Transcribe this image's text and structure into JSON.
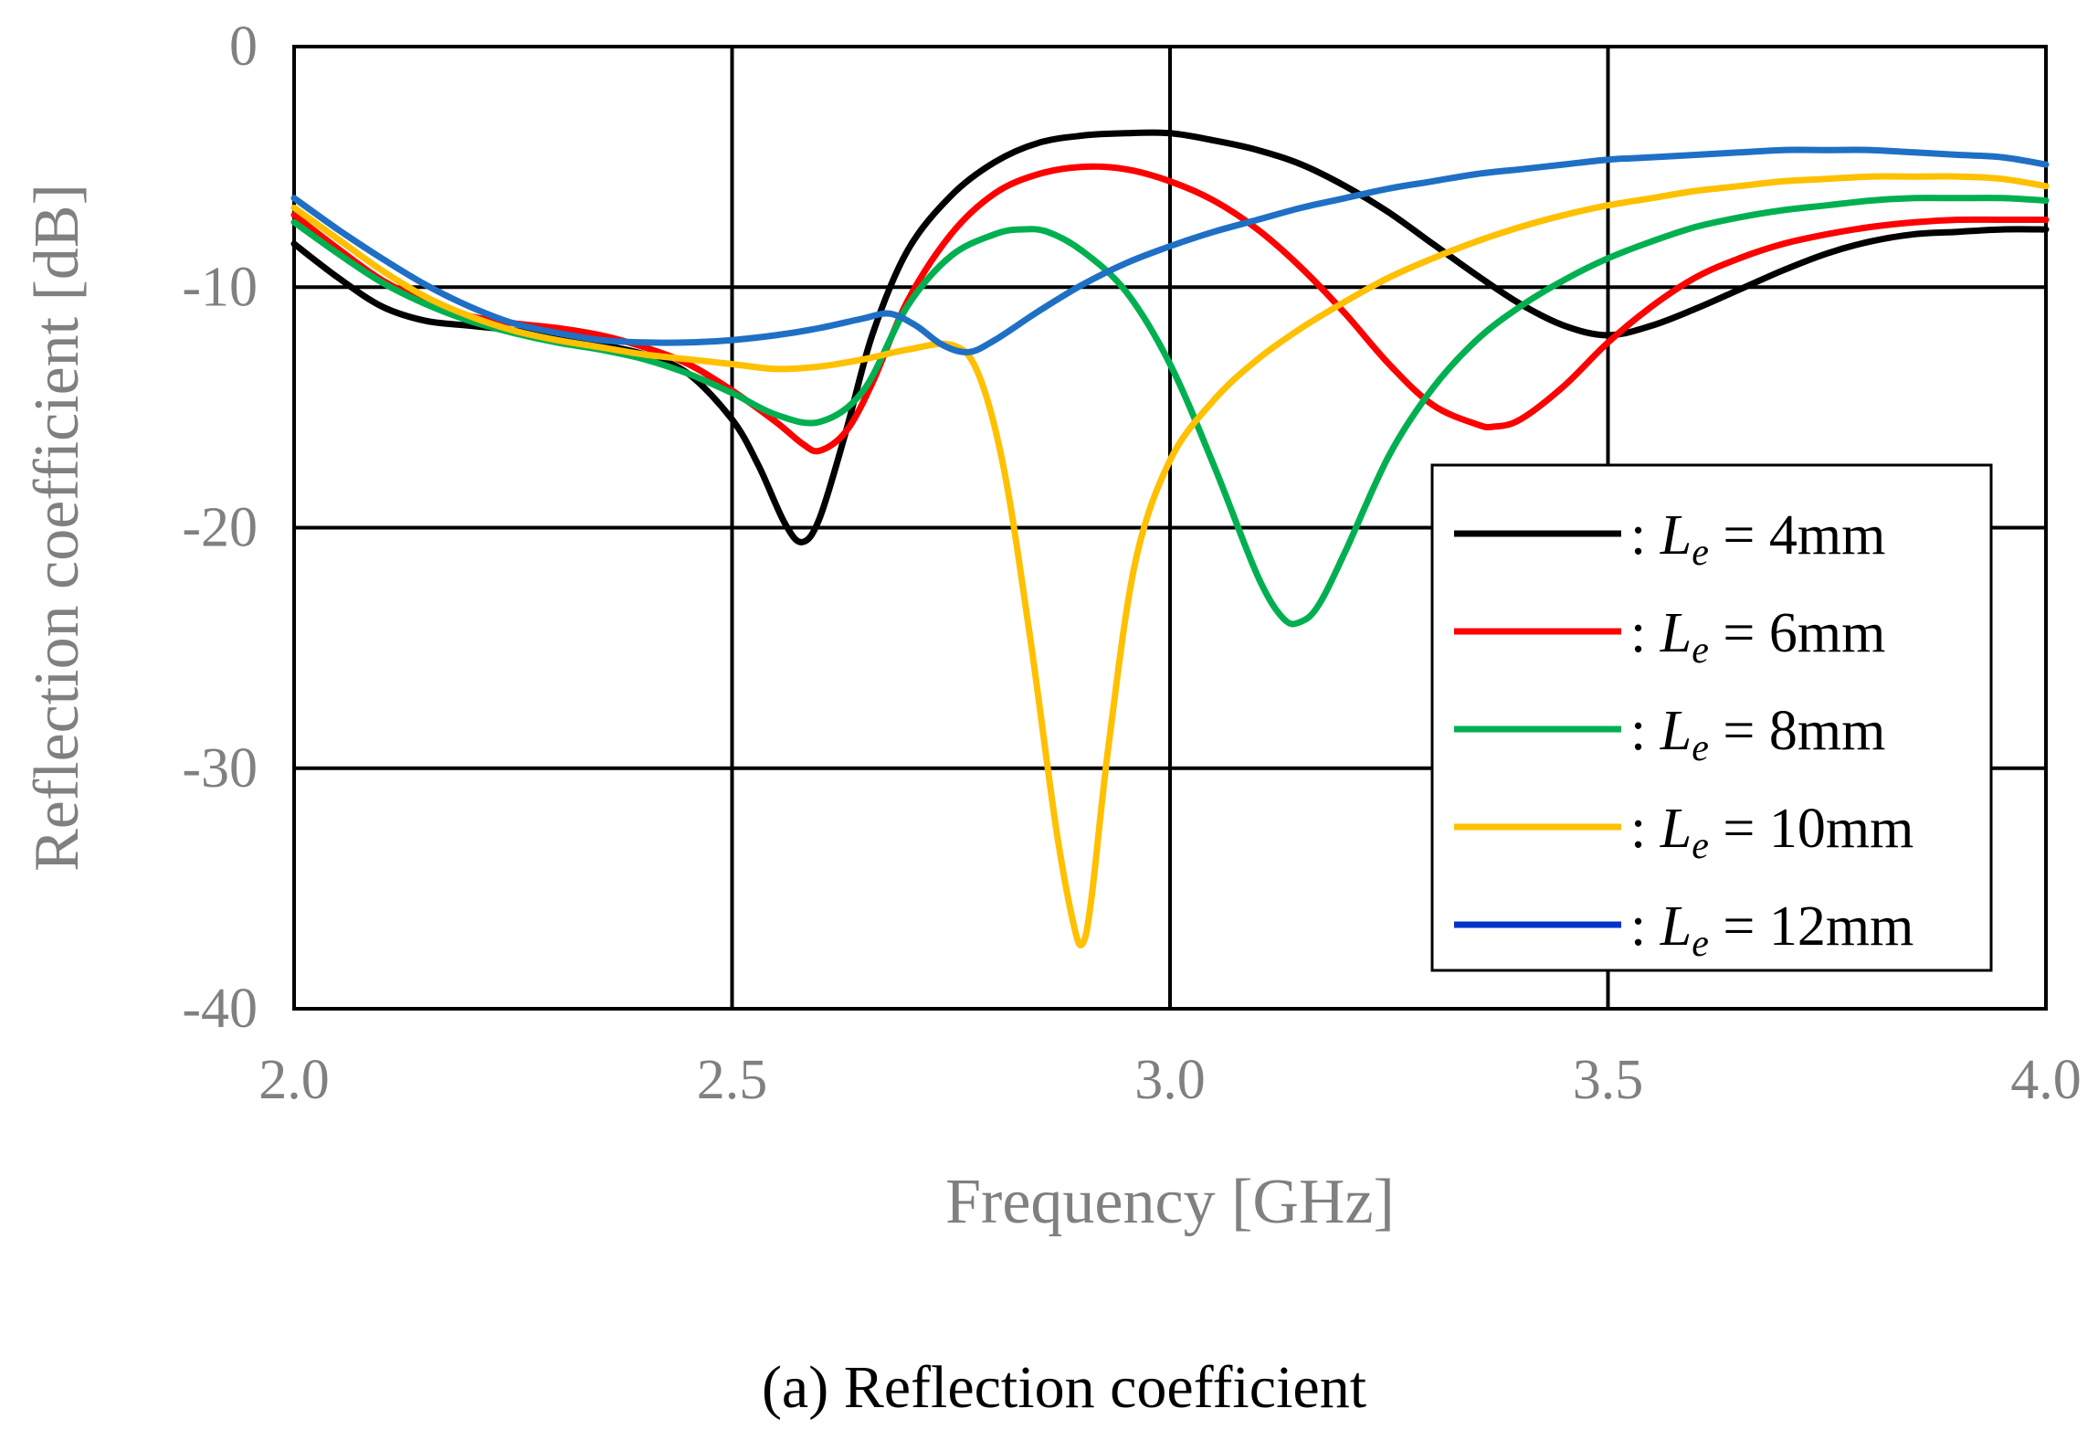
{
  "chart_data": {
    "type": "line",
    "title": "",
    "caption": "(a) Reflection coefficient",
    "xlabel": "Frequency [GHz]",
    "ylabel": "Reflection coefficient [dB]",
    "xlim": [
      2.0,
      4.0
    ],
    "ylim": [
      -40,
      0
    ],
    "xticks": [
      2.0,
      2.5,
      3.0,
      3.5,
      4.0
    ],
    "xtick_labels": [
      "2.0",
      "2.5",
      "3.0",
      "3.5",
      "4.0"
    ],
    "yticks": [
      0,
      -10,
      -20,
      -30,
      -40
    ],
    "ytick_labels": [
      "0",
      "-10",
      "-20",
      "-30",
      "-40"
    ],
    "grid": true,
    "legend_position": "lower-right",
    "series": [
      {
        "name": ": Le = 4mm",
        "legend_prefix": ": ",
        "legend_var": "L",
        "legend_sub": "e",
        "legend_value": " = 4mm",
        "color": "#000000",
        "x": [
          2.0,
          2.05,
          2.1,
          2.15,
          2.2,
          2.25,
          2.3,
          2.35,
          2.4,
          2.45,
          2.5,
          2.53,
          2.56,
          2.58,
          2.6,
          2.63,
          2.66,
          2.7,
          2.75,
          2.8,
          2.85,
          2.9,
          2.95,
          3.0,
          3.05,
          3.1,
          3.15,
          3.2,
          3.25,
          3.3,
          3.35,
          3.4,
          3.45,
          3.5,
          3.55,
          3.6,
          3.65,
          3.7,
          3.75,
          3.8,
          3.85,
          3.9,
          3.95,
          4.0
        ],
        "y": [
          -8.2,
          -9.6,
          -10.8,
          -11.4,
          -11.6,
          -11.8,
          -12.1,
          -12.4,
          -12.8,
          -13.6,
          -15.5,
          -17.4,
          -19.8,
          -20.6,
          -19.6,
          -16.0,
          -12.0,
          -8.5,
          -6.2,
          -4.8,
          -4.0,
          -3.7,
          -3.6,
          -3.6,
          -3.9,
          -4.3,
          -4.9,
          -5.8,
          -6.9,
          -8.2,
          -9.5,
          -10.7,
          -11.6,
          -12.0,
          -11.6,
          -10.9,
          -10.1,
          -9.3,
          -8.6,
          -8.1,
          -7.8,
          -7.7,
          -7.6,
          -7.6
        ]
      },
      {
        "name": ": Le = 6mm",
        "legend_prefix": ": ",
        "legend_var": "L",
        "legend_sub": "e",
        "legend_value": " = 6mm",
        "color": "#ff0000",
        "x": [
          2.0,
          2.05,
          2.1,
          2.15,
          2.2,
          2.25,
          2.3,
          2.35,
          2.4,
          2.45,
          2.5,
          2.55,
          2.58,
          2.6,
          2.63,
          2.66,
          2.7,
          2.75,
          2.8,
          2.85,
          2.9,
          2.95,
          3.0,
          3.05,
          3.1,
          3.15,
          3.2,
          3.25,
          3.3,
          3.35,
          3.37,
          3.4,
          3.45,
          3.5,
          3.55,
          3.6,
          3.65,
          3.7,
          3.75,
          3.8,
          3.85,
          3.9,
          3.95,
          4.0
        ],
        "y": [
          -7.0,
          -8.4,
          -9.7,
          -10.6,
          -11.2,
          -11.5,
          -11.7,
          -12.0,
          -12.5,
          -13.2,
          -14.3,
          -15.6,
          -16.5,
          -16.8,
          -16.0,
          -14.0,
          -10.6,
          -7.8,
          -6.1,
          -5.3,
          -5.0,
          -5.1,
          -5.6,
          -6.4,
          -7.6,
          -9.2,
          -11.1,
          -13.2,
          -14.9,
          -15.7,
          -15.8,
          -15.5,
          -14.1,
          -12.3,
          -10.8,
          -9.6,
          -8.8,
          -8.2,
          -7.8,
          -7.5,
          -7.3,
          -7.2,
          -7.2,
          -7.2
        ]
      },
      {
        "name": ": Le = 8mm",
        "legend_prefix": ": ",
        "legend_var": "L",
        "legend_sub": "e",
        "legend_value": " = 8mm",
        "color": "#00b050",
        "x": [
          2.0,
          2.05,
          2.1,
          2.15,
          2.2,
          2.25,
          2.3,
          2.35,
          2.4,
          2.45,
          2.5,
          2.55,
          2.6,
          2.65,
          2.7,
          2.75,
          2.8,
          2.83,
          2.86,
          2.9,
          2.95,
          3.0,
          3.05,
          3.1,
          3.13,
          3.15,
          3.17,
          3.2,
          3.25,
          3.3,
          3.35,
          3.4,
          3.45,
          3.5,
          3.55,
          3.6,
          3.65,
          3.7,
          3.75,
          3.8,
          3.85,
          3.9,
          3.95,
          4.0
        ],
        "y": [
          -7.3,
          -8.6,
          -9.8,
          -10.7,
          -11.4,
          -11.9,
          -12.3,
          -12.6,
          -13.0,
          -13.6,
          -14.4,
          -15.3,
          -15.6,
          -14.3,
          -10.8,
          -8.7,
          -7.8,
          -7.6,
          -7.7,
          -8.5,
          -10.2,
          -13.2,
          -17.4,
          -22.0,
          -23.8,
          -23.9,
          -23.2,
          -21.0,
          -17.0,
          -14.2,
          -12.2,
          -10.8,
          -9.7,
          -8.8,
          -8.1,
          -7.5,
          -7.1,
          -6.8,
          -6.6,
          -6.4,
          -6.3,
          -6.3,
          -6.3,
          -6.4
        ]
      },
      {
        "name": ": Le = 10mm",
        "legend_prefix": ": ",
        "legend_var": "L",
        "legend_sub": "e",
        "legend_value": " = 10mm",
        "color": "#ffc000",
        "x": [
          2.0,
          2.05,
          2.1,
          2.15,
          2.2,
          2.25,
          2.3,
          2.35,
          2.4,
          2.45,
          2.5,
          2.55,
          2.6,
          2.65,
          2.7,
          2.75,
          2.78,
          2.81,
          2.84,
          2.87,
          2.89,
          2.9,
          2.91,
          2.93,
          2.96,
          3.0,
          3.05,
          3.1,
          3.15,
          3.2,
          3.25,
          3.3,
          3.35,
          3.4,
          3.45,
          3.5,
          3.55,
          3.6,
          3.65,
          3.7,
          3.75,
          3.8,
          3.85,
          3.9,
          3.95,
          4.0
        ],
        "y": [
          -6.7,
          -8.0,
          -9.3,
          -10.4,
          -11.2,
          -11.8,
          -12.2,
          -12.5,
          -12.8,
          -13.0,
          -13.2,
          -13.4,
          -13.3,
          -13.0,
          -12.6,
          -12.4,
          -13.5,
          -17.5,
          -24.5,
          -32.5,
          -36.5,
          -37.3,
          -35.5,
          -29.0,
          -21.5,
          -17.2,
          -14.7,
          -13.0,
          -11.7,
          -10.6,
          -9.6,
          -8.8,
          -8.1,
          -7.5,
          -7.0,
          -6.6,
          -6.3,
          -6.0,
          -5.8,
          -5.6,
          -5.5,
          -5.4,
          -5.4,
          -5.4,
          -5.5,
          -5.8
        ]
      },
      {
        "name": ": Le = 12mm",
        "legend_prefix": ": ",
        "legend_var": "L",
        "legend_sub": "e",
        "legend_value": " = 12mm",
        "color": "#0033cc",
        "plot_color": "#1f6fc5",
        "x": [
          2.0,
          2.05,
          2.1,
          2.15,
          2.2,
          2.25,
          2.3,
          2.35,
          2.4,
          2.45,
          2.5,
          2.55,
          2.6,
          2.65,
          2.68,
          2.71,
          2.74,
          2.77,
          2.8,
          2.85,
          2.9,
          2.95,
          3.0,
          3.05,
          3.1,
          3.15,
          3.2,
          3.25,
          3.3,
          3.35,
          3.4,
          3.45,
          3.5,
          3.55,
          3.6,
          3.65,
          3.7,
          3.75,
          3.8,
          3.85,
          3.9,
          3.95,
          4.0
        ],
        "y": [
          -6.3,
          -7.6,
          -8.8,
          -9.9,
          -10.8,
          -11.5,
          -11.9,
          -12.2,
          -12.3,
          -12.3,
          -12.2,
          -12.0,
          -11.7,
          -11.3,
          -11.1,
          -11.6,
          -12.4,
          -12.7,
          -12.2,
          -11.0,
          -9.9,
          -9.0,
          -8.3,
          -7.7,
          -7.2,
          -6.7,
          -6.3,
          -5.9,
          -5.6,
          -5.3,
          -5.1,
          -4.9,
          -4.7,
          -4.6,
          -4.5,
          -4.4,
          -4.3,
          -4.3,
          -4.3,
          -4.4,
          -4.5,
          -4.6,
          -4.9
        ]
      }
    ]
  }
}
